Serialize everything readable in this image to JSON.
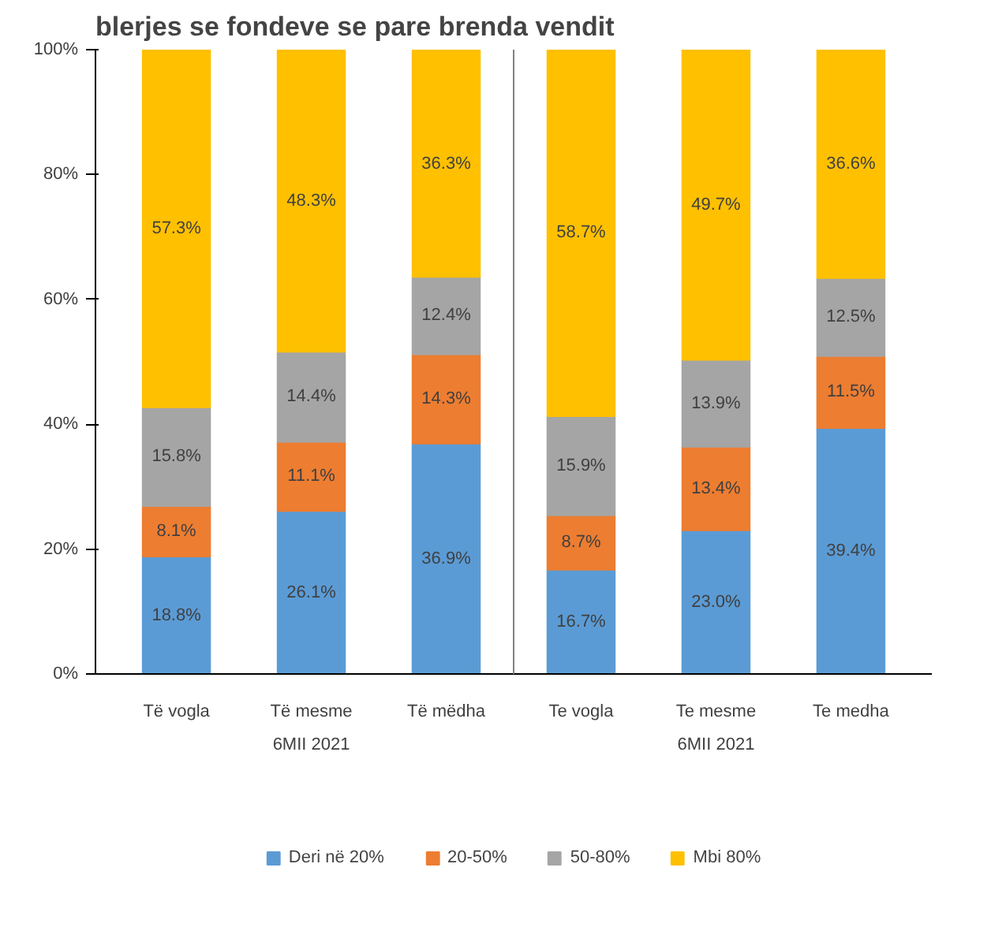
{
  "chart_data": {
    "type": "bar",
    "stacked": true,
    "title": "blerjes se fondeve se pare brenda vendit",
    "categories": [
      "Të vogla",
      "Të mesme",
      "Të mëdha",
      "Te vogla",
      "Te mesme",
      "Te medha"
    ],
    "annotations": [
      "6MII 2021",
      "6MII 2021"
    ],
    "series": [
      {
        "name": "Deri në 20%",
        "color": "#5b9bd5",
        "values": [
          18.8,
          26.1,
          36.9,
          16.7,
          23.0,
          39.4
        ],
        "value_labels": [
          "18.8%",
          "26.1%",
          "36.9%",
          "16.7%",
          "23.0%",
          "39.4%"
        ]
      },
      {
        "name": "20-50%",
        "color": "#ed7d31",
        "values": [
          8.1,
          11.1,
          14.3,
          8.7,
          13.4,
          11.5
        ],
        "value_labels": [
          "8.1%",
          "11.1%",
          "14.3%",
          "8.7%",
          "13.4%",
          "11.5%"
        ]
      },
      {
        "name": "50-80%",
        "color": "#a5a5a5",
        "values": [
          15.8,
          14.4,
          12.4,
          15.9,
          13.9,
          12.5
        ],
        "value_labels": [
          "15.8%",
          "14.4%",
          "12.4%",
          "15.9%",
          "13.9%",
          "12.5%"
        ]
      },
      {
        "name": "Mbi 80%",
        "color": "#ffc000",
        "values": [
          57.3,
          48.3,
          36.3,
          58.7,
          49.7,
          36.6
        ],
        "value_labels": [
          "57.3%",
          "48.3%",
          "36.3%",
          "58.7%",
          "49.7%",
          "36.6%"
        ]
      }
    ],
    "ylim": [
      0,
      100
    ],
    "yticks": [
      {
        "value": 0,
        "label": "0%"
      },
      {
        "value": 20,
        "label": "20%"
      },
      {
        "value": 40,
        "label": "40%"
      },
      {
        "value": 60,
        "label": "60%"
      },
      {
        "value": 80,
        "label": "80%"
      },
      {
        "value": 100,
        "label": "100%"
      }
    ],
    "grid": false,
    "legend": "bottom"
  }
}
